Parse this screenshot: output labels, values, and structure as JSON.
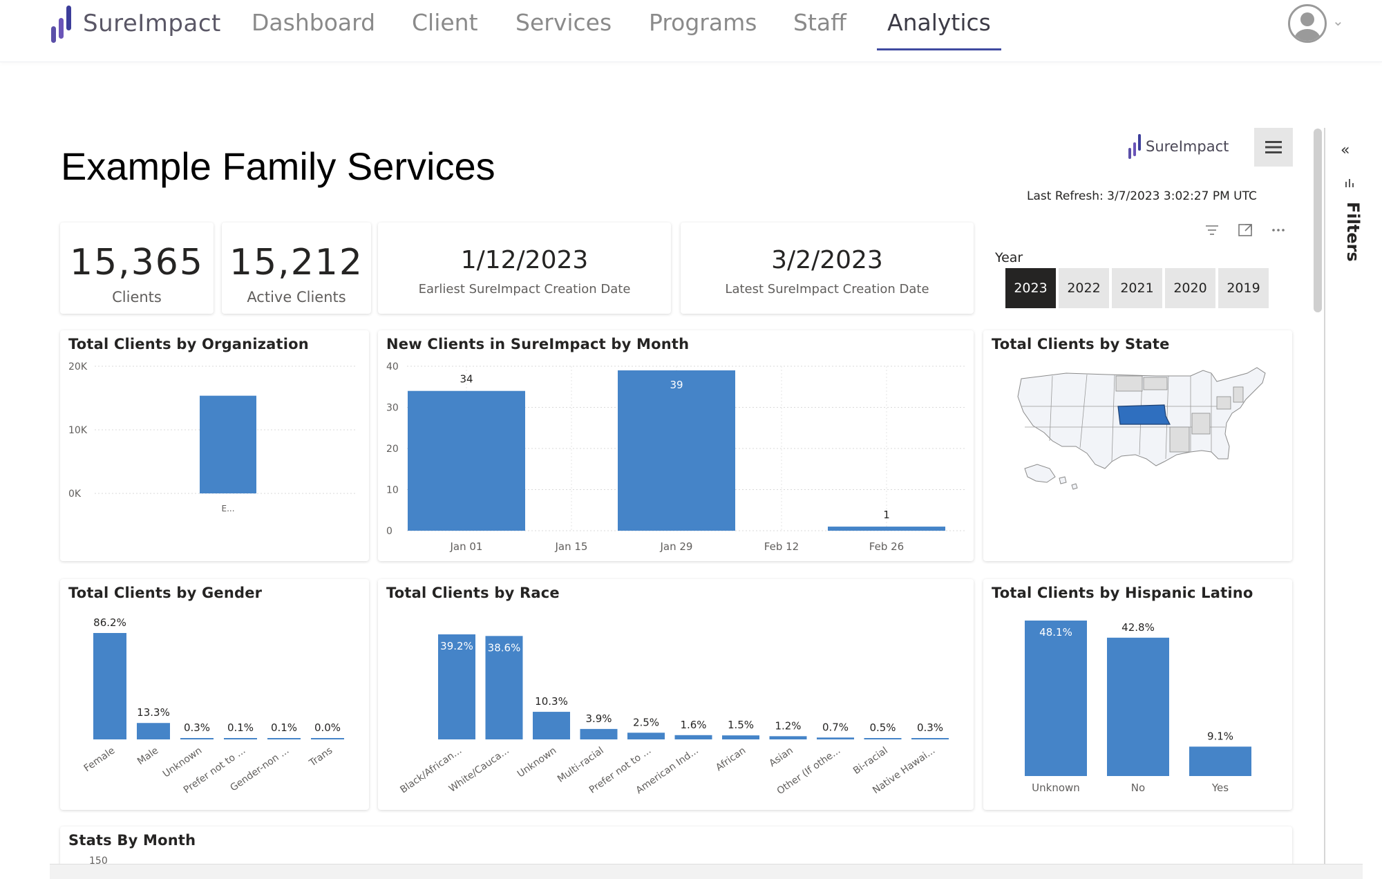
{
  "nav": {
    "brand": "SureImpact",
    "items": [
      "Dashboard",
      "Client",
      "Services",
      "Programs",
      "Staff",
      "Analytics"
    ],
    "active": "Analytics"
  },
  "report": {
    "title": "Example Family Services",
    "logo_text": "SureImpact",
    "last_refresh": "Last Refresh: 3/7/2023 3:02:27 PM UTC",
    "filters_label": "Filters"
  },
  "kpis": [
    {
      "value": "15,365",
      "label": "Clients"
    },
    {
      "value": "15,212",
      "label": "Active Clients"
    },
    {
      "value": "1/12/2023",
      "label": "Earliest SureImpact Creation Date"
    },
    {
      "value": "3/2/2023",
      "label": "Latest SureImpact Creation Date"
    }
  ],
  "year_slicer": {
    "label": "Year",
    "options": [
      "2023",
      "2022",
      "2021",
      "2020",
      "2019"
    ],
    "selected": "2023"
  },
  "colors": {
    "bar": "#4584c8",
    "accent": "#3f4aa0",
    "highlight_state": "#2f6fbf"
  },
  "chart_data": [
    {
      "type": "bar",
      "title": "Total Clients by Organization",
      "categories": [
        "E..."
      ],
      "values": [
        15365
      ],
      "ylim": [
        0,
        20000
      ],
      "yticks": [
        "0K",
        "10K",
        "20K"
      ]
    },
    {
      "type": "bar",
      "title": "New Clients in SureImpact by Month",
      "x": [
        "Jan 01",
        "Jan 29",
        "Feb 26"
      ],
      "values": [
        34,
        39,
        1
      ],
      "xticks": [
        "Jan 01",
        "Jan 15",
        "Jan 29",
        "Feb 12",
        "Feb 26"
      ],
      "ylim": [
        0,
        40
      ],
      "yticks": [
        "0",
        "10",
        "20",
        "30",
        "40"
      ]
    },
    {
      "type": "bar",
      "title": "Total Clients by Gender",
      "categories": [
        "Female",
        "Male",
        "Unknown",
        "Prefer not to ...",
        "Gender-non ...",
        "Trans"
      ],
      "values": [
        86.2,
        13.3,
        0.3,
        0.1,
        0.1,
        0.0
      ],
      "labels": [
        "86.2%",
        "13.3%",
        "0.3%",
        "0.1%",
        "0.1%",
        "0.0%"
      ]
    },
    {
      "type": "bar",
      "title": "Total Clients by Race",
      "categories": [
        "Black/African...",
        "White/Cauca...",
        "Unknown",
        "Multi-racial",
        "Prefer not to ...",
        "American Ind...",
        "African",
        "Asian",
        "Other (If othe...",
        "Bi-racial",
        "Native Hawai..."
      ],
      "values": [
        39.2,
        38.6,
        10.3,
        3.9,
        2.5,
        1.6,
        1.5,
        1.2,
        0.7,
        0.5,
        0.3
      ],
      "labels": [
        "39.2%",
        "38.6%",
        "10.3%",
        "3.9%",
        "2.5%",
        "1.6%",
        "1.5%",
        "1.2%",
        "0.7%",
        "0.5%",
        "0.3%"
      ]
    },
    {
      "type": "bar",
      "title": "Total Clients by Hispanic Latino",
      "categories": [
        "Unknown",
        "No",
        "Yes"
      ],
      "values": [
        48.1,
        42.8,
        9.1
      ],
      "labels": [
        "48.1%",
        "42.8%",
        "9.1%"
      ]
    }
  ],
  "map": {
    "title": "Total Clients by State",
    "highlighted": "Nebraska"
  },
  "stats": {
    "title": "Stats By Month",
    "ytick_top": "150"
  }
}
